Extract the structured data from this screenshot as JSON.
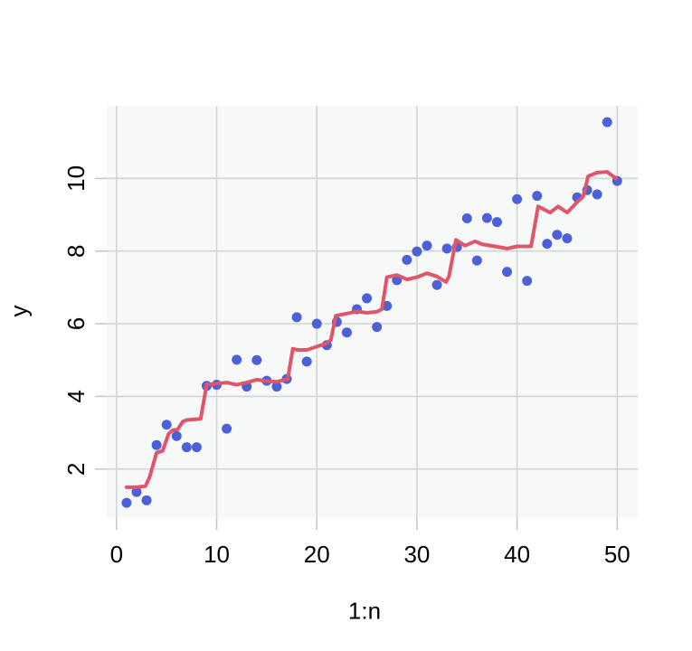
{
  "figure": {
    "title": "",
    "background": "#ffffff"
  },
  "chart_data": {
    "type": "scatter",
    "title": "",
    "xlabel": "1:n",
    "ylabel": "y",
    "legend": null,
    "grid": true,
    "x_ticks": [
      0,
      10,
      20,
      30,
      40,
      50
    ],
    "y_ticks": [
      2,
      4,
      6,
      8,
      10
    ],
    "xlim": [
      -0.98,
      52.05
    ],
    "ylim": [
      0.65,
      12.0
    ],
    "points": {
      "x": [
        1,
        2,
        3,
        4,
        5,
        6,
        7,
        8,
        9,
        10,
        11,
        12,
        13,
        14,
        15,
        16,
        17,
        18,
        19,
        20,
        21,
        22,
        23,
        24,
        25,
        26,
        27,
        28,
        29,
        30,
        31,
        32,
        33,
        34,
        35,
        36,
        37,
        38,
        39,
        40,
        41,
        42,
        43,
        44,
        45,
        46,
        47,
        48,
        49,
        50
      ],
      "y": [
        1.07,
        1.37,
        1.14,
        2.66,
        3.22,
        2.91,
        2.6,
        2.6,
        4.29,
        4.32,
        3.11,
        5.01,
        4.27,
        5.0,
        4.43,
        4.27,
        4.48,
        6.18,
        4.96,
        6.0,
        5.41,
        6.05,
        5.76,
        6.4,
        6.7,
        5.91,
        6.49,
        7.2,
        7.76,
        7.99,
        8.15,
        7.07,
        8.07,
        8.11,
        8.9,
        7.74,
        8.91,
        8.8,
        7.43,
        9.43,
        7.18,
        9.52,
        8.2,
        8.45,
        8.35,
        9.48,
        9.68,
        9.56,
        11.55,
        9.93
      ]
    },
    "smooth_line": {
      "name": "running-fit-line",
      "xy": [
        [
          1.0,
          1.5
        ],
        [
          2.0,
          1.5
        ],
        [
          2.9,
          1.53
        ],
        [
          3.3,
          1.78
        ],
        [
          4.0,
          2.45
        ],
        [
          4.6,
          2.5
        ],
        [
          5.2,
          2.97
        ],
        [
          5.6,
          3.07
        ],
        [
          6.1,
          3.09
        ],
        [
          6.6,
          3.3
        ],
        [
          7.0,
          3.35
        ],
        [
          8.4,
          3.38
        ],
        [
          9.0,
          4.33
        ],
        [
          10,
          4.35
        ],
        [
          11,
          4.38
        ],
        [
          12,
          4.32
        ],
        [
          13,
          4.38
        ],
        [
          14,
          4.46
        ],
        [
          15,
          4.42
        ],
        [
          16,
          4.4
        ],
        [
          17.1,
          4.48
        ],
        [
          17.6,
          5.31
        ],
        [
          18.1,
          5.28
        ],
        [
          19,
          5.28
        ],
        [
          20,
          5.37
        ],
        [
          20.9,
          5.45
        ],
        [
          21.4,
          5.55
        ],
        [
          21.9,
          6.22
        ],
        [
          23,
          6.28
        ],
        [
          24,
          6.34
        ],
        [
          25,
          6.3
        ],
        [
          26,
          6.33
        ],
        [
          26.5,
          6.4
        ],
        [
          27.0,
          7.28
        ],
        [
          28,
          7.34
        ],
        [
          29,
          7.22
        ],
        [
          30,
          7.28
        ],
        [
          31,
          7.39
        ],
        [
          32,
          7.3
        ],
        [
          32.9,
          7.15
        ],
        [
          33.2,
          7.3
        ],
        [
          33.9,
          8.31
        ],
        [
          34.8,
          8.15
        ],
        [
          35.8,
          8.27
        ],
        [
          36.5,
          8.19
        ],
        [
          38,
          8.12
        ],
        [
          39,
          8.07
        ],
        [
          40,
          8.13
        ],
        [
          41.4,
          8.13
        ],
        [
          42.1,
          9.23
        ],
        [
          43.3,
          9.06
        ],
        [
          44.1,
          9.23
        ],
        [
          45,
          9.06
        ],
        [
          46,
          9.35
        ],
        [
          46.6,
          9.5
        ],
        [
          47.1,
          10.06
        ],
        [
          48,
          10.16
        ],
        [
          49,
          10.18
        ],
        [
          49.9,
          10.0
        ]
      ]
    },
    "colors": {
      "point": "#4c60d8",
      "line": "#e05569",
      "panel_bg": "#f7f8f8",
      "gridline": "#d3d5d4",
      "tick": "#c6c8c7",
      "label": "#000000"
    }
  }
}
